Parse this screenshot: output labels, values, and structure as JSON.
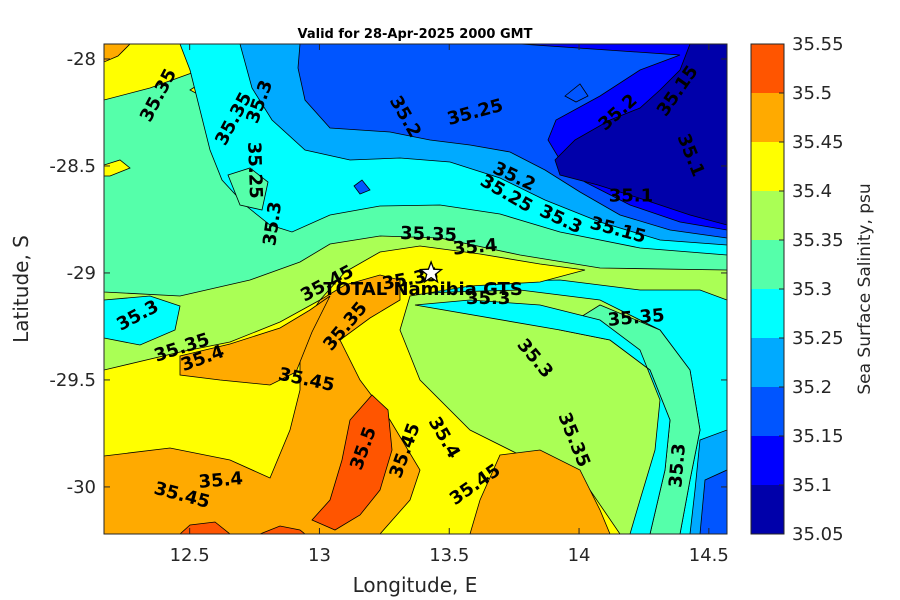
{
  "chart_data": {
    "type": "heatmap",
    "title": "Valid for 28-Apr-2025 2000 GMT",
    "xlabel": "Longitude, E",
    "ylabel": "Latitude, S",
    "colorbar_label": "Sea Surface Salinity, psu",
    "xlim": [
      12.17,
      14.57
    ],
    "ylim": [
      -30.22,
      -27.93
    ],
    "xticks": [
      12.5,
      13,
      13.5,
      14,
      14.5
    ],
    "xtick_labels": [
      "12.5",
      "13",
      "13.5",
      "14",
      "14.5"
    ],
    "yticks": [
      -28,
      -28.5,
      -29,
      -29.5,
      -30
    ],
    "ytick_labels": [
      "-28",
      "-28.5",
      "-29",
      "-29.5",
      "-30"
    ],
    "levels": [
      35.05,
      35.1,
      35.15,
      35.2,
      35.25,
      35.3,
      35.35,
      35.4,
      35.45,
      35.5,
      35.55
    ],
    "level_labels": [
      "35.05",
      "35.1",
      "35.15",
      "35.2",
      "35.25",
      "35.3",
      "35.35",
      "35.4",
      "35.45",
      "35.5",
      "35.55"
    ],
    "band_colors": [
      "#0000aa",
      "#0000ff",
      "#0055ff",
      "#00aaff",
      "#00ffff",
      "#55ffaa",
      "#aaff55",
      "#ffff00",
      "#ffaa00",
      "#ff5500"
    ],
    "contour_labels": [
      {
        "text": "35.35",
        "lon": 12.38,
        "lat": -28.17,
        "angle": -62
      },
      {
        "text": "35.35",
        "lon": 12.67,
        "lat": -28.28,
        "angle": -62
      },
      {
        "text": "35.3",
        "lon": 12.77,
        "lat": -28.2,
        "angle": -70
      },
      {
        "text": "35.25",
        "lon": 12.75,
        "lat": -28.52,
        "angle": 88
      },
      {
        "text": "35.3",
        "lon": 12.82,
        "lat": -28.77,
        "angle": -82
      },
      {
        "text": "35.2",
        "lon": 13.33,
        "lat": -28.27,
        "angle": 60
      },
      {
        "text": "35.25",
        "lon": 13.6,
        "lat": -28.25,
        "angle": -15
      },
      {
        "text": "35.2",
        "lon": 14.15,
        "lat": -28.25,
        "angle": -42
      },
      {
        "text": "35.15",
        "lon": 14.38,
        "lat": -28.15,
        "angle": -55
      },
      {
        "text": "35.1",
        "lon": 14.43,
        "lat": -28.45,
        "angle": 68
      },
      {
        "text": "35.1",
        "lon": 14.2,
        "lat": -28.64,
        "angle": 0
      },
      {
        "text": "35.2",
        "lon": 13.75,
        "lat": -28.55,
        "angle": 25
      },
      {
        "text": "35.25",
        "lon": 13.72,
        "lat": -28.63,
        "angle": 30
      },
      {
        "text": "35.3",
        "lon": 13.93,
        "lat": -28.75,
        "angle": 25
      },
      {
        "text": "35.15",
        "lon": 14.15,
        "lat": -28.8,
        "angle": 15
      },
      {
        "text": "35.35",
        "lon": 13.42,
        "lat": -28.82,
        "angle": 2
      },
      {
        "text": "35.4",
        "lon": 13.6,
        "lat": -28.88,
        "angle": -5
      },
      {
        "text": "35.45",
        "lon": 13.03,
        "lat": -29.05,
        "angle": -28
      },
      {
        "text": "35.35",
        "lon": 13.35,
        "lat": -29.03,
        "angle": -10
      },
      {
        "text": "35.3",
        "lon": 13.65,
        "lat": -29.12,
        "angle": 0
      },
      {
        "text": "35.35",
        "lon": 13.1,
        "lat": -29.25,
        "angle": -50
      },
      {
        "text": "35.35",
        "lon": 14.22,
        "lat": -29.21,
        "angle": -5
      },
      {
        "text": "35.3",
        "lon": 12.3,
        "lat": -29.2,
        "angle": -28
      },
      {
        "text": "35.35",
        "lon": 12.47,
        "lat": -29.35,
        "angle": -18
      },
      {
        "text": "35.4",
        "lon": 12.55,
        "lat": -29.4,
        "angle": -20
      },
      {
        "text": "35.45",
        "lon": 12.95,
        "lat": -29.5,
        "angle": 12
      },
      {
        "text": "35.3",
        "lon": 13.83,
        "lat": -29.4,
        "angle": 50
      },
      {
        "text": "35.35",
        "lon": 13.98,
        "lat": -29.78,
        "angle": 68
      },
      {
        "text": "35.5",
        "lon": 13.17,
        "lat": -29.82,
        "angle": -70
      },
      {
        "text": "35.45",
        "lon": 13.33,
        "lat": -29.83,
        "angle": -70
      },
      {
        "text": "35.4",
        "lon": 13.48,
        "lat": -29.77,
        "angle": 60
      },
      {
        "text": "35.3",
        "lon": 14.38,
        "lat": -29.9,
        "angle": -85
      },
      {
        "text": "35.4",
        "lon": 12.62,
        "lat": -29.97,
        "angle": -5
      },
      {
        "text": "35.45",
        "lon": 12.47,
        "lat": -30.04,
        "angle": 15
      },
      {
        "text": "35.45",
        "lon": 13.6,
        "lat": -29.99,
        "angle": -35
      }
    ],
    "station": {
      "name": "TOTAL Namibia GTS",
      "lon": 13.43,
      "lat": -29.0
    }
  }
}
